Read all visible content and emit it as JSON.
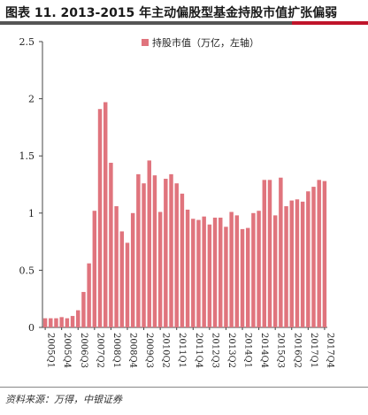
{
  "title": "图表 11. 2013-2015 年主动偏股型基金持股市值扩张偏弱",
  "source": "资料来源：万得，中银证券",
  "chart_data": {
    "type": "bar",
    "color": "#e0747d",
    "legend": {
      "label": "持股市值（万亿，左轴）",
      "position": "top-center"
    },
    "ylim": [
      0,
      2.5
    ],
    "yticks": [
      "0",
      "0.5",
      "1",
      "1.5",
      "2",
      "2.5"
    ],
    "grid": false,
    "categories": [
      "2005Q1",
      "2005Q2",
      "2005Q3",
      "2005Q4",
      "2006Q1",
      "2006Q2",
      "2006Q3",
      "2006Q4",
      "2007Q1",
      "2007Q2",
      "2007Q3",
      "2007Q4",
      "2008Q1",
      "2008Q2",
      "2008Q3",
      "2008Q4",
      "2009Q1",
      "2009Q2",
      "2009Q3",
      "2009Q4",
      "2010Q1",
      "2010Q2",
      "2010Q3",
      "2010Q4",
      "2011Q1",
      "2011Q2",
      "2011Q3",
      "2011Q4",
      "2012Q1",
      "2012Q2",
      "2012Q3",
      "2012Q4",
      "2013Q1",
      "2013Q2",
      "2013Q3",
      "2013Q4",
      "2014Q1",
      "2014Q2",
      "2014Q3",
      "2014Q4",
      "2015Q1",
      "2015Q2",
      "2015Q3",
      "2015Q4",
      "2016Q1",
      "2016Q2",
      "2016Q3",
      "2016Q4",
      "2017Q1",
      "2017Q2",
      "2017Q3",
      "2017Q4"
    ],
    "xtick_labels": [
      "2005Q1",
      "2005Q4",
      "2006Q3",
      "2007Q2",
      "2008Q1",
      "2008Q4",
      "2009Q3",
      "2010Q2",
      "2011Q1",
      "2011Q4",
      "2012Q3",
      "2013Q2",
      "2014Q1",
      "2014Q4",
      "2015Q3",
      "2016Q2",
      "2017Q1",
      "2017Q4"
    ],
    "values": [
      0.08,
      0.08,
      0.08,
      0.09,
      0.08,
      0.1,
      0.15,
      0.31,
      0.56,
      1.02,
      1.91,
      1.97,
      1.44,
      1.06,
      0.84,
      0.74,
      1.0,
      1.34,
      1.26,
      1.46,
      1.33,
      1.01,
      1.3,
      1.34,
      1.26,
      1.17,
      1.03,
      0.95,
      0.94,
      0.97,
      0.9,
      0.96,
      0.96,
      0.88,
      1.01,
      0.98,
      0.86,
      0.87,
      1.0,
      1.02,
      1.29,
      1.29,
      0.98,
      1.31,
      1.06,
      1.11,
      1.12,
      1.1,
      1.19,
      1.23,
      1.29,
      1.28
    ]
  }
}
